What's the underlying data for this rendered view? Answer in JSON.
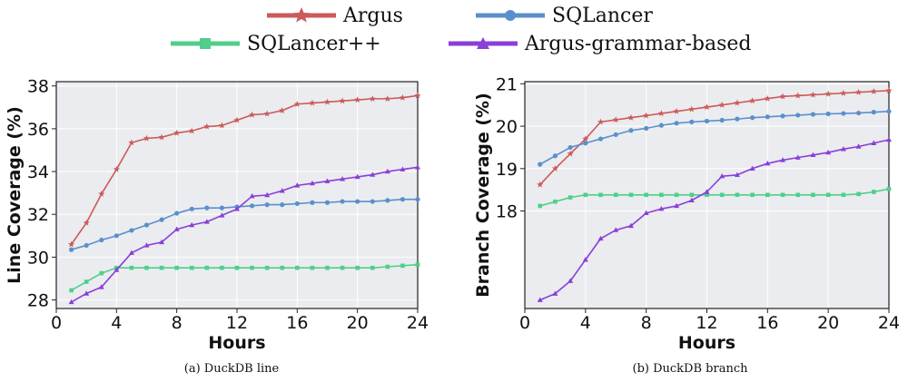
{
  "legend": [
    {
      "name": "Argus",
      "color": "#cc5a5a",
      "marker": "star"
    },
    {
      "name": "SQLancer",
      "color": "#5b8fcc",
      "marker": "circle"
    },
    {
      "name": "SQLancer++",
      "color": "#4fcf8a",
      "marker": "square"
    },
    {
      "name": "Argus-grammar-based",
      "color": "#8a3fd8",
      "marker": "triangle"
    }
  ],
  "chart_data": [
    {
      "type": "line",
      "caption": "(a) DuckDB line",
      "xlabel": "Hours",
      "ylabel": "Line Coverage (%)",
      "xlim": [
        0,
        24
      ],
      "ylim": [
        27.6,
        38.2
      ],
      "xticks": [
        0,
        4,
        8,
        12,
        16,
        20,
        24
      ],
      "yticks": [
        28,
        30,
        32,
        34,
        36,
        38
      ],
      "grid": true,
      "x": [
        1,
        2,
        3,
        4,
        5,
        6,
        7,
        8,
        9,
        10,
        11,
        12,
        13,
        14,
        15,
        16,
        17,
        18,
        19,
        20,
        21,
        22,
        23,
        24
      ],
      "series": [
        {
          "name": "Argus",
          "values": [
            30.6,
            31.6,
            32.95,
            34.1,
            35.35,
            35.55,
            35.6,
            35.8,
            35.9,
            36.1,
            36.15,
            36.4,
            36.65,
            36.7,
            36.85,
            37.15,
            37.2,
            37.25,
            37.3,
            37.35,
            37.4,
            37.4,
            37.45,
            37.55
          ]
        },
        {
          "name": "SQLancer",
          "values": [
            30.35,
            30.55,
            30.8,
            31.0,
            31.25,
            31.5,
            31.75,
            32.05,
            32.25,
            32.3,
            32.3,
            32.35,
            32.4,
            32.45,
            32.45,
            32.5,
            32.55,
            32.55,
            32.6,
            32.6,
            32.6,
            32.65,
            32.7,
            32.7
          ]
        },
        {
          "name": "SQLancer++",
          "values": [
            28.45,
            28.85,
            29.25,
            29.5,
            29.5,
            29.5,
            29.5,
            29.5,
            29.5,
            29.5,
            29.5,
            29.5,
            29.5,
            29.5,
            29.5,
            29.5,
            29.5,
            29.5,
            29.5,
            29.5,
            29.5,
            29.55,
            29.6,
            29.65
          ]
        },
        {
          "name": "Argus-grammar-based",
          "values": [
            27.9,
            28.3,
            28.6,
            29.4,
            30.2,
            30.55,
            30.7,
            31.3,
            31.5,
            31.65,
            31.95,
            32.25,
            32.85,
            32.9,
            33.1,
            33.35,
            33.45,
            33.55,
            33.65,
            33.75,
            33.85,
            34.0,
            34.1,
            34.2
          ]
        }
      ]
    },
    {
      "type": "line",
      "caption": "(b) DuckDB branch",
      "xlabel": "Hours",
      "ylabel": "Branch Coverage (%)",
      "xlim": [
        0,
        24
      ],
      "ylim": [
        15.7,
        21.05
      ],
      "xticks": [
        0,
        4,
        8,
        12,
        16,
        20,
        24
      ],
      "yticks": [
        18,
        19,
        20,
        21
      ],
      "grid": true,
      "x": [
        1,
        2,
        3,
        4,
        5,
        6,
        7,
        8,
        9,
        10,
        11,
        12,
        13,
        14,
        15,
        16,
        17,
        18,
        19,
        20,
        21,
        22,
        23,
        24
      ],
      "series": [
        {
          "name": "Argus",
          "values": [
            18.62,
            19.0,
            19.35,
            19.7,
            20.1,
            20.15,
            20.2,
            20.25,
            20.3,
            20.35,
            20.4,
            20.45,
            20.5,
            20.55,
            20.6,
            20.65,
            20.7,
            20.72,
            20.74,
            20.76,
            20.78,
            20.8,
            20.82,
            20.84
          ]
        },
        {
          "name": "SQLancer",
          "values": [
            19.1,
            19.3,
            19.5,
            19.6,
            19.7,
            19.8,
            19.9,
            19.95,
            20.02,
            20.07,
            20.1,
            20.12,
            20.14,
            20.17,
            20.2,
            20.22,
            20.24,
            20.26,
            20.28,
            20.29,
            20.3,
            20.31,
            20.33,
            20.35
          ]
        },
        {
          "name": "SQLancer++",
          "values": [
            18.12,
            18.22,
            18.32,
            18.38,
            18.38,
            18.38,
            18.38,
            18.38,
            18.38,
            18.38,
            18.38,
            18.38,
            18.38,
            18.38,
            18.38,
            18.38,
            18.38,
            18.38,
            18.38,
            18.38,
            18.38,
            18.4,
            18.45,
            18.52
          ]
        },
        {
          "name": "Argus-grammar-based",
          "values": [
            15.9,
            16.05,
            16.35,
            16.85,
            17.35,
            17.55,
            17.65,
            17.95,
            18.05,
            18.12,
            18.25,
            18.45,
            18.82,
            18.85,
            19.0,
            19.12,
            19.2,
            19.26,
            19.32,
            19.38,
            19.46,
            19.52,
            19.6,
            19.68
          ]
        }
      ]
    }
  ]
}
